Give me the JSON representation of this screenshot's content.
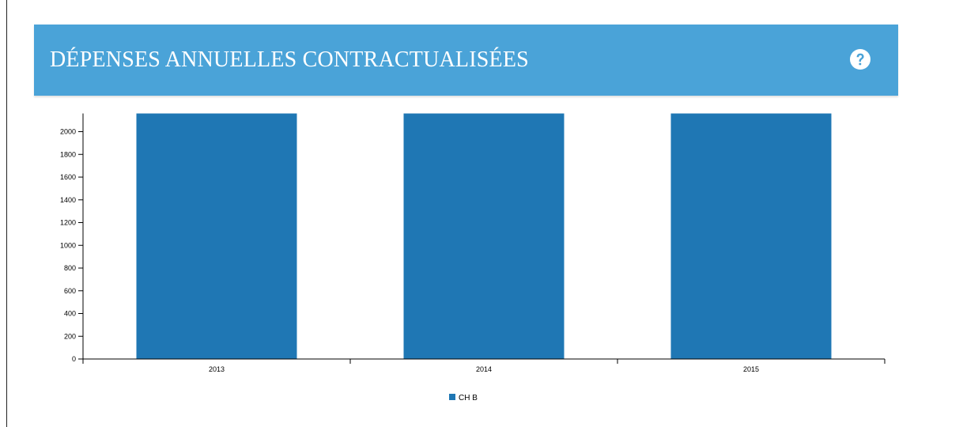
{
  "panel": {
    "title": "DÉPENSES ANNUELLES CONTRACTUALISÉES",
    "help_icon": "question-circle-icon"
  },
  "colors": {
    "header": "#4aa3d8",
    "bar": "#1f77b4",
    "title_text": "#ffffff"
  },
  "chart_data": {
    "type": "bar",
    "categories": [
      "2013",
      "2014",
      "2015"
    ],
    "series": [
      {
        "name": "CH B",
        "values": [
          2160,
          2160,
          2160
        ]
      }
    ],
    "yticks": [
      0,
      200,
      400,
      600,
      800,
      1000,
      1200,
      1400,
      1600,
      1800,
      2000
    ],
    "ylim": [
      0,
      2160
    ],
    "xlabel": "",
    "ylabel": "",
    "grid": false,
    "legend_position": "bottom"
  }
}
